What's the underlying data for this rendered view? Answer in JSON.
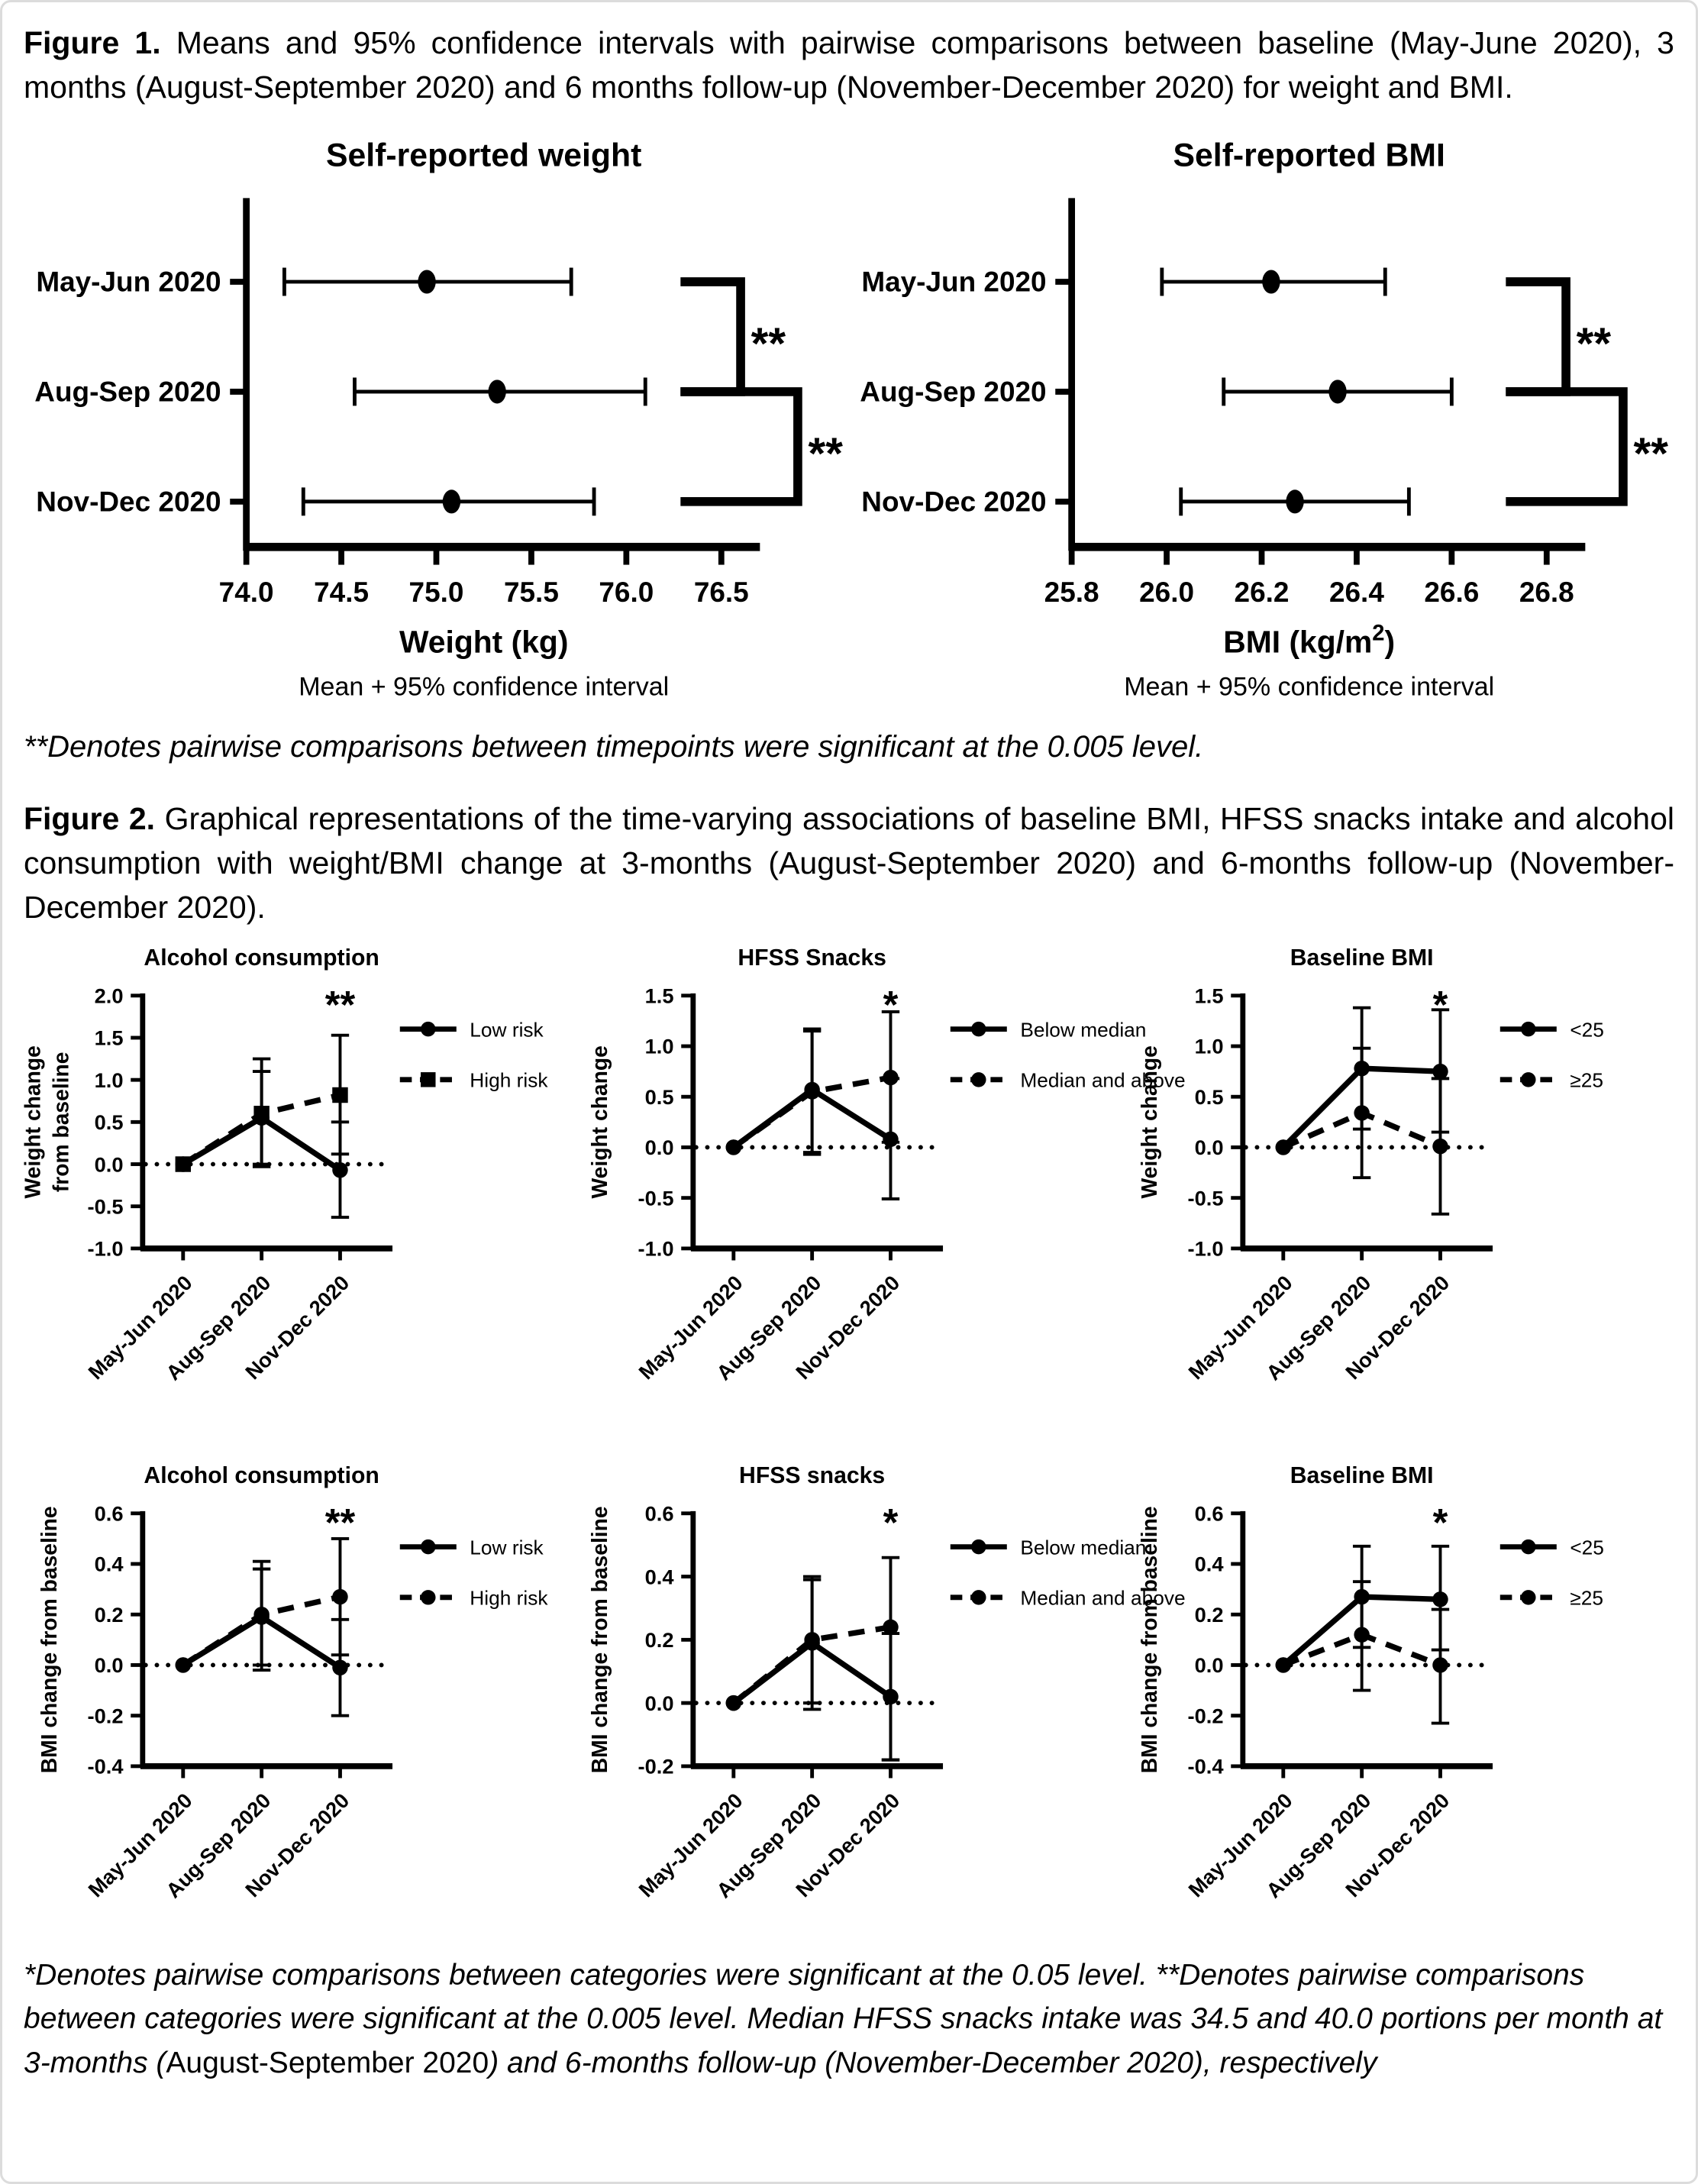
{
  "page": {
    "fig1_caption_bold": "Figure 1.",
    "fig1_caption_rest": " Means and 95% confidence intervals with pairwise comparisons between baseline (May-June 2020), 3 months (August-September 2020) and 6 months follow-up (November-December 2020) for weight and BMI.",
    "fig1_footnote": "**Denotes pairwise comparisons between timepoints were significant at the 0.005 level.",
    "fig2_caption_bold": "Figure 2.",
    "fig2_caption_rest": " Graphical representations of the time-varying associations of baseline BMI, HFSS snacks intake and alcohol consumption with weight/BMI change at 3-months (August-September 2020) and 6-months follow-up (November-December 2020).",
    "fig2_footnote_parts": {
      "p1": "*Denotes pairwise comparisons between categories were significant at the 0.05 level. **Denotes pairwise comparisons between categories were significant at the 0.005 level. Median HFSS snacks intake was 34.5 and 40.0 portions per month at 3-months (",
      "p2": "August-September 2020",
      "p3": ") and 6-months follow-up (November-December 2020), respectively"
    }
  },
  "chart_data": [
    {
      "name": "self-reported-weight",
      "type": "dot-ci",
      "title": "Self-reported weight",
      "xlabel": "Weight (kg)",
      "sublabel": "Mean + 95% confidence interval",
      "xticks": [
        74.0,
        74.5,
        75.0,
        75.5,
        76.0,
        76.5
      ],
      "categories": [
        "May-Jun 2020",
        "Aug-Sep 2020",
        "Nov-Dec 2020"
      ],
      "points": [
        {
          "label": "May-Jun 2020",
          "mean": 74.95,
          "lo": 74.2,
          "hi": 75.71
        },
        {
          "label": "Aug-Sep 2020",
          "mean": 75.32,
          "lo": 74.57,
          "hi": 76.1
        },
        {
          "label": "Nov-Dec 2020",
          "mean": 75.08,
          "lo": 74.3,
          "hi": 75.83
        }
      ],
      "comparisons": [
        {
          "between": [
            "May-Jun 2020",
            "Aug-Sep 2020"
          ],
          "label": "**"
        },
        {
          "between": [
            "Aug-Sep 2020",
            "Nov-Dec 2020"
          ],
          "label": "**"
        }
      ]
    },
    {
      "name": "self-reported-bmi",
      "type": "dot-ci",
      "title": "Self-reported BMI",
      "xlabel": "BMI (kg/m",
      "xlabel_sup": "2",
      "xlabel_end": ")",
      "sublabel": "Mean + 95% confidence interval",
      "xticks": [
        25.8,
        26.0,
        26.2,
        26.4,
        26.6,
        26.8
      ],
      "categories": [
        "May-Jun 2020",
        "Aug-Sep 2020",
        "Nov-Dec 2020"
      ],
      "points": [
        {
          "label": "May-Jun 2020",
          "mean": 26.22,
          "lo": 25.99,
          "hi": 26.46
        },
        {
          "label": "Aug-Sep 2020",
          "mean": 26.36,
          "lo": 26.12,
          "hi": 26.6
        },
        {
          "label": "Nov-Dec 2020",
          "mean": 26.27,
          "lo": 26.03,
          "hi": 26.51
        }
      ],
      "comparisons": [
        {
          "between": [
            "May-Jun 2020",
            "Aug-Sep 2020"
          ],
          "label": "**"
        },
        {
          "between": [
            "Aug-Sep 2020",
            "Nov-Dec 2020"
          ],
          "label": "**"
        }
      ]
    },
    {
      "name": "weight-change-alcohol",
      "type": "line",
      "title": "Alcohol consumption",
      "ylabel_lines": [
        "Weight change",
        "from baseline"
      ],
      "ylim": [
        -1.0,
        2.0
      ],
      "ystep": 0.5,
      "categories": [
        "May-Jun 2020",
        "Aug-Sep 2020",
        "Nov-Dec 2020"
      ],
      "sig": "**",
      "series": [
        {
          "name": "Low risk",
          "line": "solid",
          "marker": "circle",
          "values": [
            0.0,
            0.55,
            -0.07
          ],
          "ci_lo": [
            0.0,
            0.0,
            -0.63
          ],
          "ci_hi": [
            0.0,
            1.1,
            0.5
          ]
        },
        {
          "name": "High risk",
          "line": "dashed",
          "marker": "square",
          "values": [
            0.0,
            0.6,
            0.82
          ],
          "ci_lo": [
            0.0,
            -0.03,
            0.12
          ],
          "ci_hi": [
            0.0,
            1.25,
            1.53
          ]
        }
      ]
    },
    {
      "name": "weight-change-hfss-snacks",
      "type": "line",
      "title": "HFSS Snacks",
      "ylabel_lines": [
        "Weight change"
      ],
      "ylim": [
        -1.0,
        1.5
      ],
      "ystep": 0.5,
      "categories": [
        "May-Jun 2020",
        "Aug-Sep 2020",
        "Nov-Dec 2020"
      ],
      "sig": "*",
      "series": [
        {
          "name": "Below median",
          "line": "solid",
          "marker": "circle",
          "values": [
            0.0,
            0.57,
            0.08
          ],
          "ci_lo": [
            0.0,
            -0.05,
            -0.51
          ],
          "ci_hi": [
            0.0,
            1.17,
            0.68
          ]
        },
        {
          "name": "Median and above",
          "line": "dashed",
          "marker": "circle",
          "values": [
            0.0,
            0.55,
            0.69
          ],
          "ci_lo": [
            0.0,
            -0.07,
            0.05
          ],
          "ci_hi": [
            0.0,
            1.15,
            1.34
          ]
        }
      ]
    },
    {
      "name": "weight-change-baseline-bmi",
      "type": "line",
      "title": "Baseline BMI",
      "ylabel_lines": [
        "Weight change"
      ],
      "ylim": [
        -1.0,
        1.5
      ],
      "ystep": 0.5,
      "categories": [
        "May-Jun 2020",
        "Aug-Sep 2020",
        "Nov-Dec 2020"
      ],
      "sig": "*",
      "series": [
        {
          "name": "<25",
          "line": "solid",
          "marker": "circle",
          "values": [
            0.0,
            0.78,
            0.75
          ],
          "ci_lo": [
            0.0,
            0.18,
            0.15
          ],
          "ci_hi": [
            0.0,
            1.38,
            1.36
          ]
        },
        {
          "name": "≥25",
          "line": "dashed",
          "marker": "circle",
          "values": [
            0.0,
            0.34,
            0.01
          ],
          "ci_lo": [
            0.0,
            -0.3,
            -0.66
          ],
          "ci_hi": [
            0.0,
            0.98,
            0.68
          ]
        }
      ]
    },
    {
      "name": "bmi-change-alcohol",
      "type": "line",
      "title": "Alcohol consumption",
      "ylabel_lines": [
        "BMI change from baseline"
      ],
      "ylim": [
        -0.4,
        0.6
      ],
      "ystep": 0.2,
      "categories": [
        "May-Jun 2020",
        "Aug-Sep 2020",
        "Nov-Dec 2020"
      ],
      "sig": "**",
      "series": [
        {
          "name": "Low risk",
          "line": "solid",
          "marker": "circle",
          "values": [
            0.0,
            0.19,
            -0.01
          ],
          "ci_lo": [
            0.0,
            -0.02,
            -0.2
          ],
          "ci_hi": [
            0.0,
            0.38,
            0.18
          ]
        },
        {
          "name": "High risk",
          "line": "dashed",
          "marker": "circle",
          "values": [
            0.0,
            0.2,
            0.27
          ],
          "ci_lo": [
            0.0,
            0.0,
            0.04
          ],
          "ci_hi": [
            0.0,
            0.41,
            0.5
          ]
        }
      ]
    },
    {
      "name": "bmi-change-hfss-snacks",
      "type": "line",
      "title": "HFSS snacks",
      "ylabel_lines": [
        "BMI change from baseline"
      ],
      "ylim": [
        -0.2,
        0.6
      ],
      "ystep": 0.2,
      "categories": [
        "May-Jun 2020",
        "Aug-Sep 2020",
        "Nov-Dec 2020"
      ],
      "sig": "*",
      "series": [
        {
          "name": "Below median",
          "line": "solid",
          "marker": "circle",
          "values": [
            0.0,
            0.19,
            0.02
          ],
          "ci_lo": [
            0.0,
            -0.02,
            -0.18
          ],
          "ci_hi": [
            0.0,
            0.39,
            0.22
          ]
        },
        {
          "name": "Median and above",
          "line": "dashed",
          "marker": "circle",
          "values": [
            0.0,
            0.2,
            0.24
          ],
          "ci_lo": [
            0.0,
            0.0,
            -0.18
          ],
          "ci_hi": [
            0.0,
            0.4,
            0.46
          ]
        }
      ]
    },
    {
      "name": "bmi-change-baseline-bmi",
      "type": "line",
      "title": "Baseline BMI",
      "ylabel_lines": [
        "BMI change from baseline"
      ],
      "ylim": [
        -0.4,
        0.6
      ],
      "ystep": 0.2,
      "categories": [
        "May-Jun 2020",
        "Aug-Sep 2020",
        "Nov-Dec 2020"
      ],
      "sig": "*",
      "series": [
        {
          "name": "<25",
          "line": "solid",
          "marker": "circle",
          "values": [
            0.0,
            0.27,
            0.26
          ],
          "ci_lo": [
            0.0,
            0.07,
            0.06
          ],
          "ci_hi": [
            0.0,
            0.47,
            0.47
          ]
        },
        {
          "name": "≥25",
          "line": "dashed",
          "marker": "circle",
          "values": [
            0.0,
            0.12,
            0.0
          ],
          "ci_lo": [
            0.0,
            -0.1,
            -0.23
          ],
          "ci_hi": [
            0.0,
            0.33,
            0.22
          ]
        }
      ]
    }
  ]
}
